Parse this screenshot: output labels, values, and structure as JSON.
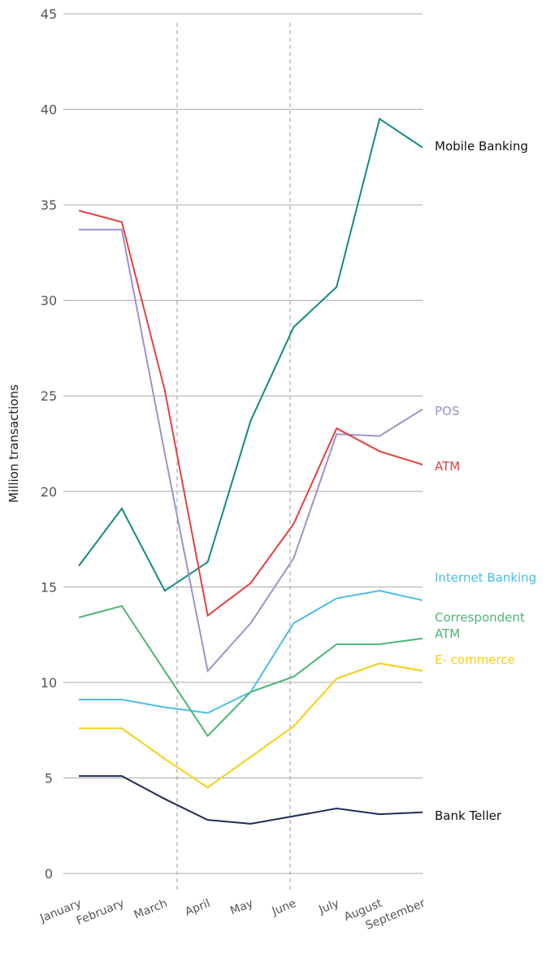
{
  "chart_data": {
    "type": "line",
    "y_label": "Million transactions",
    "categories": [
      "January",
      "February",
      "March",
      "April",
      "May",
      "June",
      "July",
      "August",
      "September"
    ],
    "series": [
      {
        "name": "Mobile Banking",
        "color": "#138a80",
        "values": [
          16.1,
          19.1,
          14.8,
          16.3,
          23.7,
          28.6,
          30.7,
          39.5,
          38.0
        ]
      },
      {
        "name": "POS",
        "color": "#9b93c9",
        "values": [
          33.7,
          33.7,
          22.0,
          10.6,
          13.1,
          16.5,
          23.0,
          22.9,
          24.3
        ]
      },
      {
        "name": "ATM",
        "color": "#e5413f",
        "values": [
          34.7,
          34.1,
          25.3,
          13.5,
          15.2,
          18.3,
          23.3,
          22.1,
          21.4
        ]
      },
      {
        "name": "Internet Banking",
        "color": "#4bbde8",
        "values": [
          9.1,
          9.1,
          8.7,
          8.4,
          9.5,
          13.1,
          14.4,
          14.8,
          14.3
        ]
      },
      {
        "name": "Correspondent ATM",
        "color": "#4db577",
        "values": [
          13.4,
          14.0,
          10.6,
          7.2,
          9.5,
          10.3,
          12.0,
          12.0,
          12.3
        ]
      },
      {
        "name": "E- commerce",
        "color": "#f5cf14",
        "values": [
          7.6,
          7.6,
          6.0,
          4.5,
          6.1,
          7.7,
          10.2,
          11.0,
          10.6
        ]
      },
      {
        "name": "Bank Teller",
        "color": "#1e2d5a",
        "values": [
          5.1,
          5.1,
          3.9,
          2.8,
          2.6,
          3.0,
          3.4,
          3.1,
          3.2
        ]
      }
    ],
    "ylim": [
      0,
      45
    ],
    "yticks": [
      0,
      5,
      10,
      15,
      20,
      25,
      30,
      35,
      40,
      45
    ],
    "grid": true
  }
}
